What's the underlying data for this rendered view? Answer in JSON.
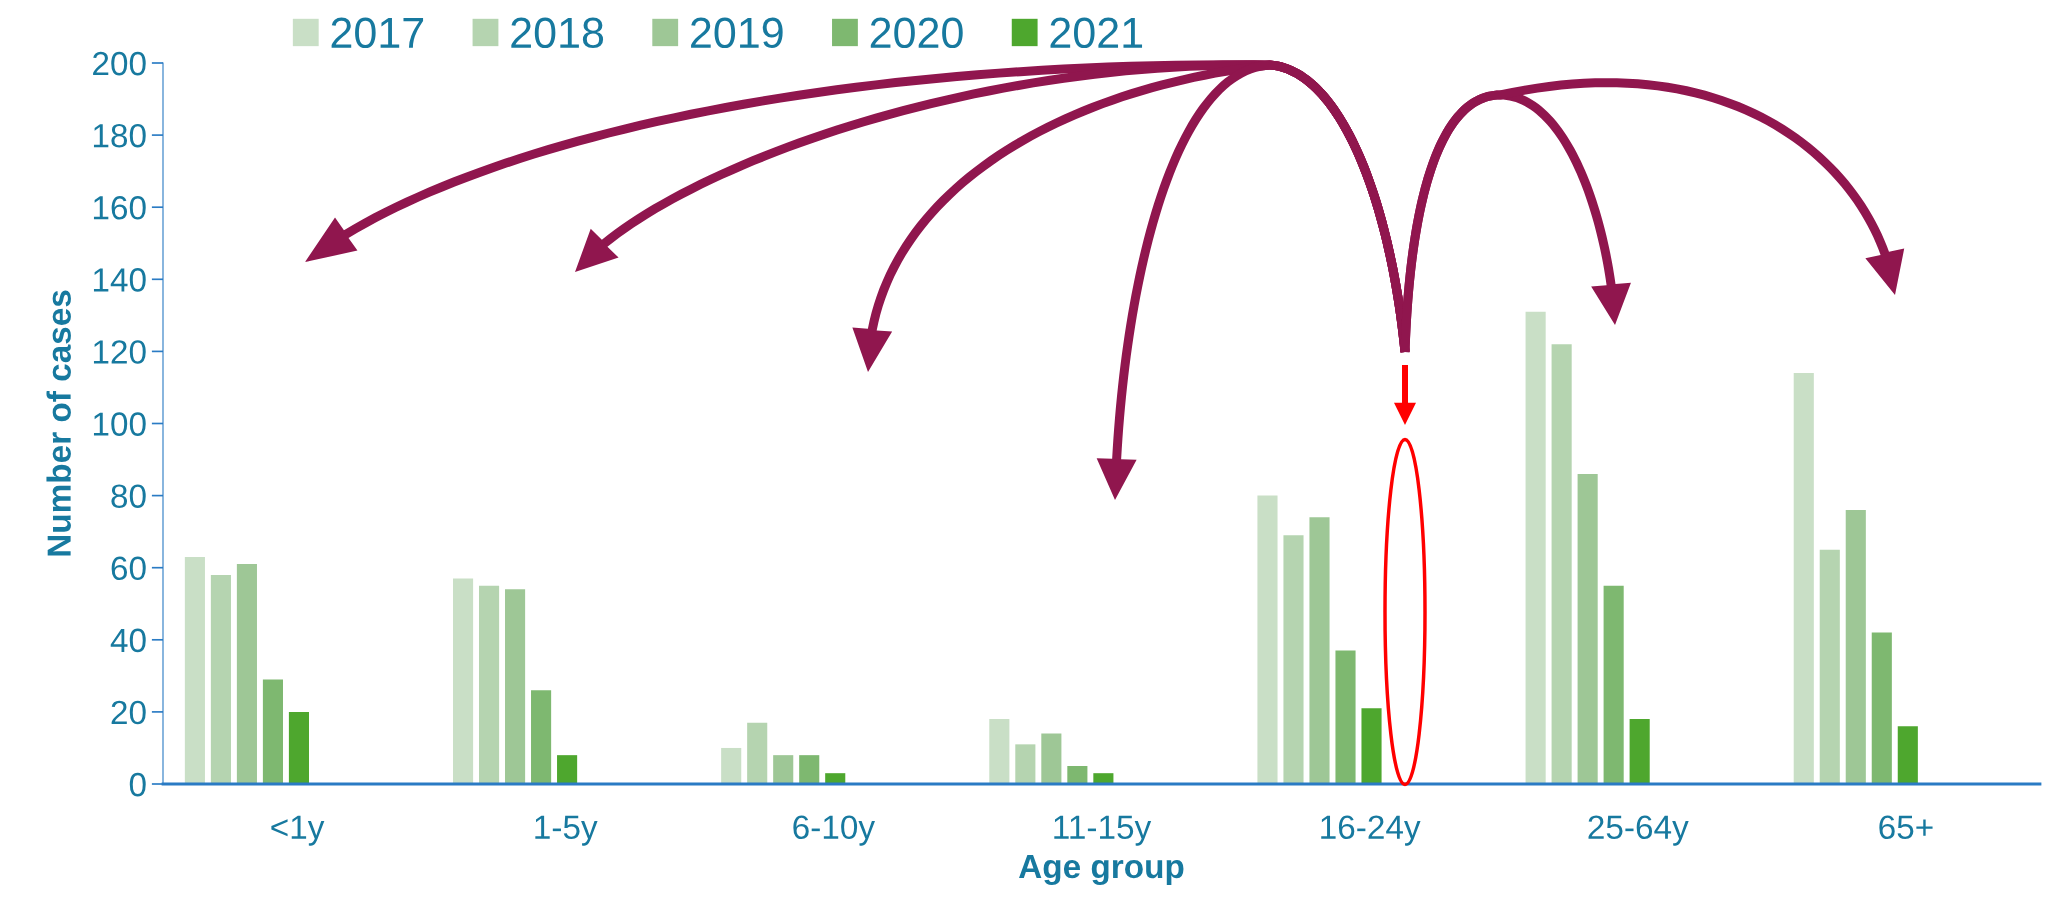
{
  "chart_data": {
    "type": "bar",
    "xlabel": "Age group",
    "ylabel": "Number of cases",
    "categories": [
      "<1y",
      "1-5y",
      "6-10y",
      "11-15y",
      "16-24y",
      "25-64y",
      "65+"
    ],
    "series": [
      {
        "name": "2017",
        "color": "#c9dfc6",
        "values": [
          63,
          57,
          10,
          18,
          80,
          131,
          114
        ]
      },
      {
        "name": "2018",
        "color": "#b5d4b0",
        "values": [
          58,
          55,
          17,
          11,
          69,
          122,
          65
        ]
      },
      {
        "name": "2019",
        "color": "#9ec796",
        "values": [
          61,
          54,
          8,
          14,
          74,
          86,
          76
        ]
      },
      {
        "name": "2020",
        "color": "#7eb870",
        "values": [
          29,
          26,
          8,
          5,
          37,
          55,
          42
        ]
      },
      {
        "name": "2021",
        "color": "#4ea72e",
        "values": [
          20,
          8,
          3,
          3,
          21,
          18,
          16
        ]
      }
    ],
    "ylim": [
      0,
      200
    ],
    "yticks": [
      0,
      20,
      40,
      60,
      80,
      100,
      120,
      140,
      160,
      180,
      200
    ],
    "grid": false,
    "legend": "top"
  }
}
